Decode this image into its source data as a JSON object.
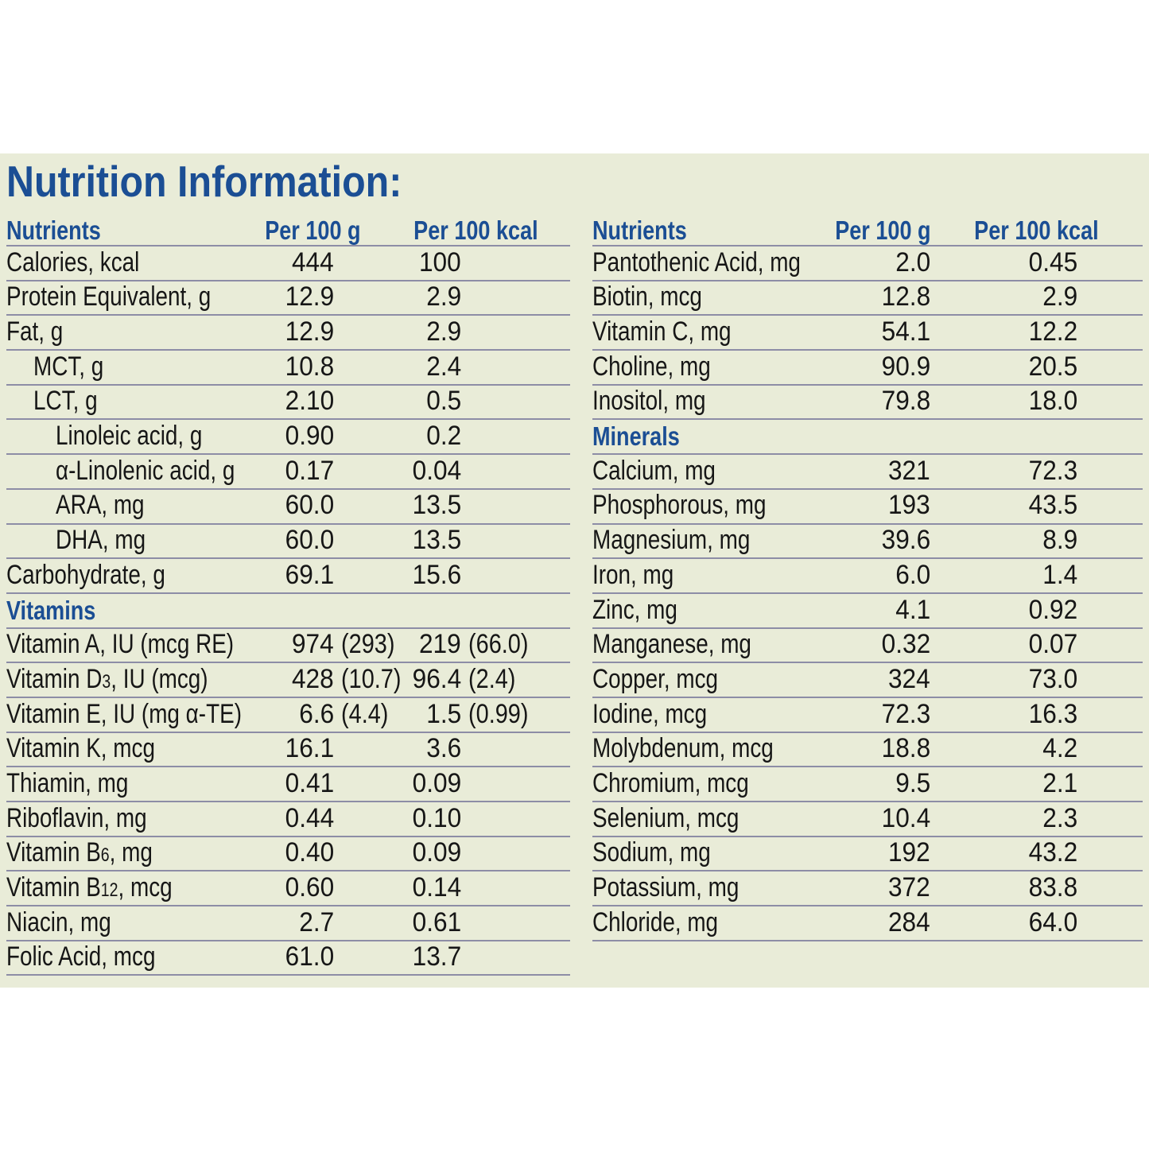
{
  "title": "Nutrition Information:",
  "columns": {
    "nutrient": "Nutrients",
    "per100g": "Per 100 g",
    "per100kcal": "Per 100 kcal"
  },
  "colors": {
    "accent_blue": "#1b4e94",
    "body_text": "#161616",
    "rule_line": "#8d8da6",
    "panel_background": "#e9ecd8",
    "page_background": "#ffffff"
  },
  "left_table": {
    "rows": [
      {
        "name": "Calories, kcal",
        "g": "444",
        "kcal": "100"
      },
      {
        "name": "Protein Equivalent, g",
        "g": "12.9",
        "kcal": "2.9"
      },
      {
        "name": "Fat, g",
        "g": "12.9",
        "kcal": "2.9"
      },
      {
        "name": "MCT, g",
        "indent": 1,
        "g": "10.8",
        "kcal": "2.4"
      },
      {
        "name": "LCT, g",
        "indent": 1,
        "g": "2.10",
        "kcal": "0.5"
      },
      {
        "name": "Linoleic acid, g",
        "indent": 2,
        "g": "0.90",
        "kcal": "0.2"
      },
      {
        "name": "α-Linolenic acid, g",
        "indent": 2,
        "g": "0.17",
        "kcal": "0.04"
      },
      {
        "name": "ARA, mg",
        "indent": 2,
        "g": "60.0",
        "kcal": "13.5"
      },
      {
        "name": "DHA, mg",
        "indent": 2,
        "g": "60.0",
        "kcal": "13.5"
      },
      {
        "name": "Carbohydrate, g",
        "g": "69.1",
        "kcal": "15.6"
      },
      {
        "section": "Vitamins"
      },
      {
        "name": "Vitamin A, IU (mcg RE)",
        "g": "974 (293)",
        "kcal": "219 (66.0)"
      },
      {
        "name": "Vitamin D",
        "sub": "3",
        "rest": ", IU (mcg)",
        "g": "428 (10.7)",
        "kcal": "96.4 (2.4)"
      },
      {
        "name": "Vitamin E, IU (mg α-TE)",
        "g": "6.6 (4.4)",
        "kcal": "1.5 (0.99)"
      },
      {
        "name": "Vitamin K, mcg",
        "g": "16.1",
        "kcal": "3.6"
      },
      {
        "name": "Thiamin, mg",
        "g": "0.41",
        "kcal": "0.09"
      },
      {
        "name": "Riboflavin, mg",
        "g": "0.44",
        "kcal": "0.10"
      },
      {
        "name": "Vitamin B",
        "sub": "6",
        "rest": ", mg",
        "g": "0.40",
        "kcal": "0.09"
      },
      {
        "name": "Vitamin B",
        "sub": "12",
        "rest": ", mcg",
        "g": "0.60",
        "kcal": "0.14"
      },
      {
        "name": "Niacin, mg",
        "g": "2.7",
        "kcal": "0.61"
      },
      {
        "name": "Folic Acid, mcg",
        "g": "61.0",
        "kcal": "13.7"
      }
    ]
  },
  "right_table": {
    "rows": [
      {
        "name": "Pantothenic Acid, mg",
        "g": "2.0",
        "kcal": "0.45"
      },
      {
        "name": "Biotin, mcg",
        "g": "12.8",
        "kcal": "2.9"
      },
      {
        "name": "Vitamin C, mg",
        "g": "54.1",
        "kcal": "12.2"
      },
      {
        "name": "Choline, mg",
        "g": "90.9",
        "kcal": "20.5"
      },
      {
        "name": "Inositol, mg",
        "g": "79.8",
        "kcal": "18.0"
      },
      {
        "section": "Minerals"
      },
      {
        "name": "Calcium, mg",
        "g": "321",
        "kcal": "72.3"
      },
      {
        "name": "Phosphorous, mg",
        "g": "193",
        "kcal": "43.5"
      },
      {
        "name": "Magnesium, mg",
        "g": "39.6",
        "kcal": "8.9"
      },
      {
        "name": "Iron, mg",
        "g": "6.0",
        "kcal": "1.4"
      },
      {
        "name": "Zinc, mg",
        "g": "4.1",
        "kcal": "0.92"
      },
      {
        "name": "Manganese, mg",
        "g": "0.32",
        "kcal": "0.07"
      },
      {
        "name": "Copper, mcg",
        "g": "324",
        "kcal": "73.0"
      },
      {
        "name": "Iodine, mcg",
        "g": "72.3",
        "kcal": "16.3"
      },
      {
        "name": "Molybdenum, mcg",
        "g": "18.8",
        "kcal": "4.2"
      },
      {
        "name": "Chromium, mcg",
        "g": "9.5",
        "kcal": "2.1"
      },
      {
        "name": "Selenium, mcg",
        "g": "10.4",
        "kcal": "2.3"
      },
      {
        "name": "Sodium, mg",
        "g": "192",
        "kcal": "43.2"
      },
      {
        "name": "Potassium, mg",
        "g": "372",
        "kcal": "83.8"
      },
      {
        "name": "Chloride, mg",
        "g": "284",
        "kcal": "64.0"
      }
    ]
  }
}
